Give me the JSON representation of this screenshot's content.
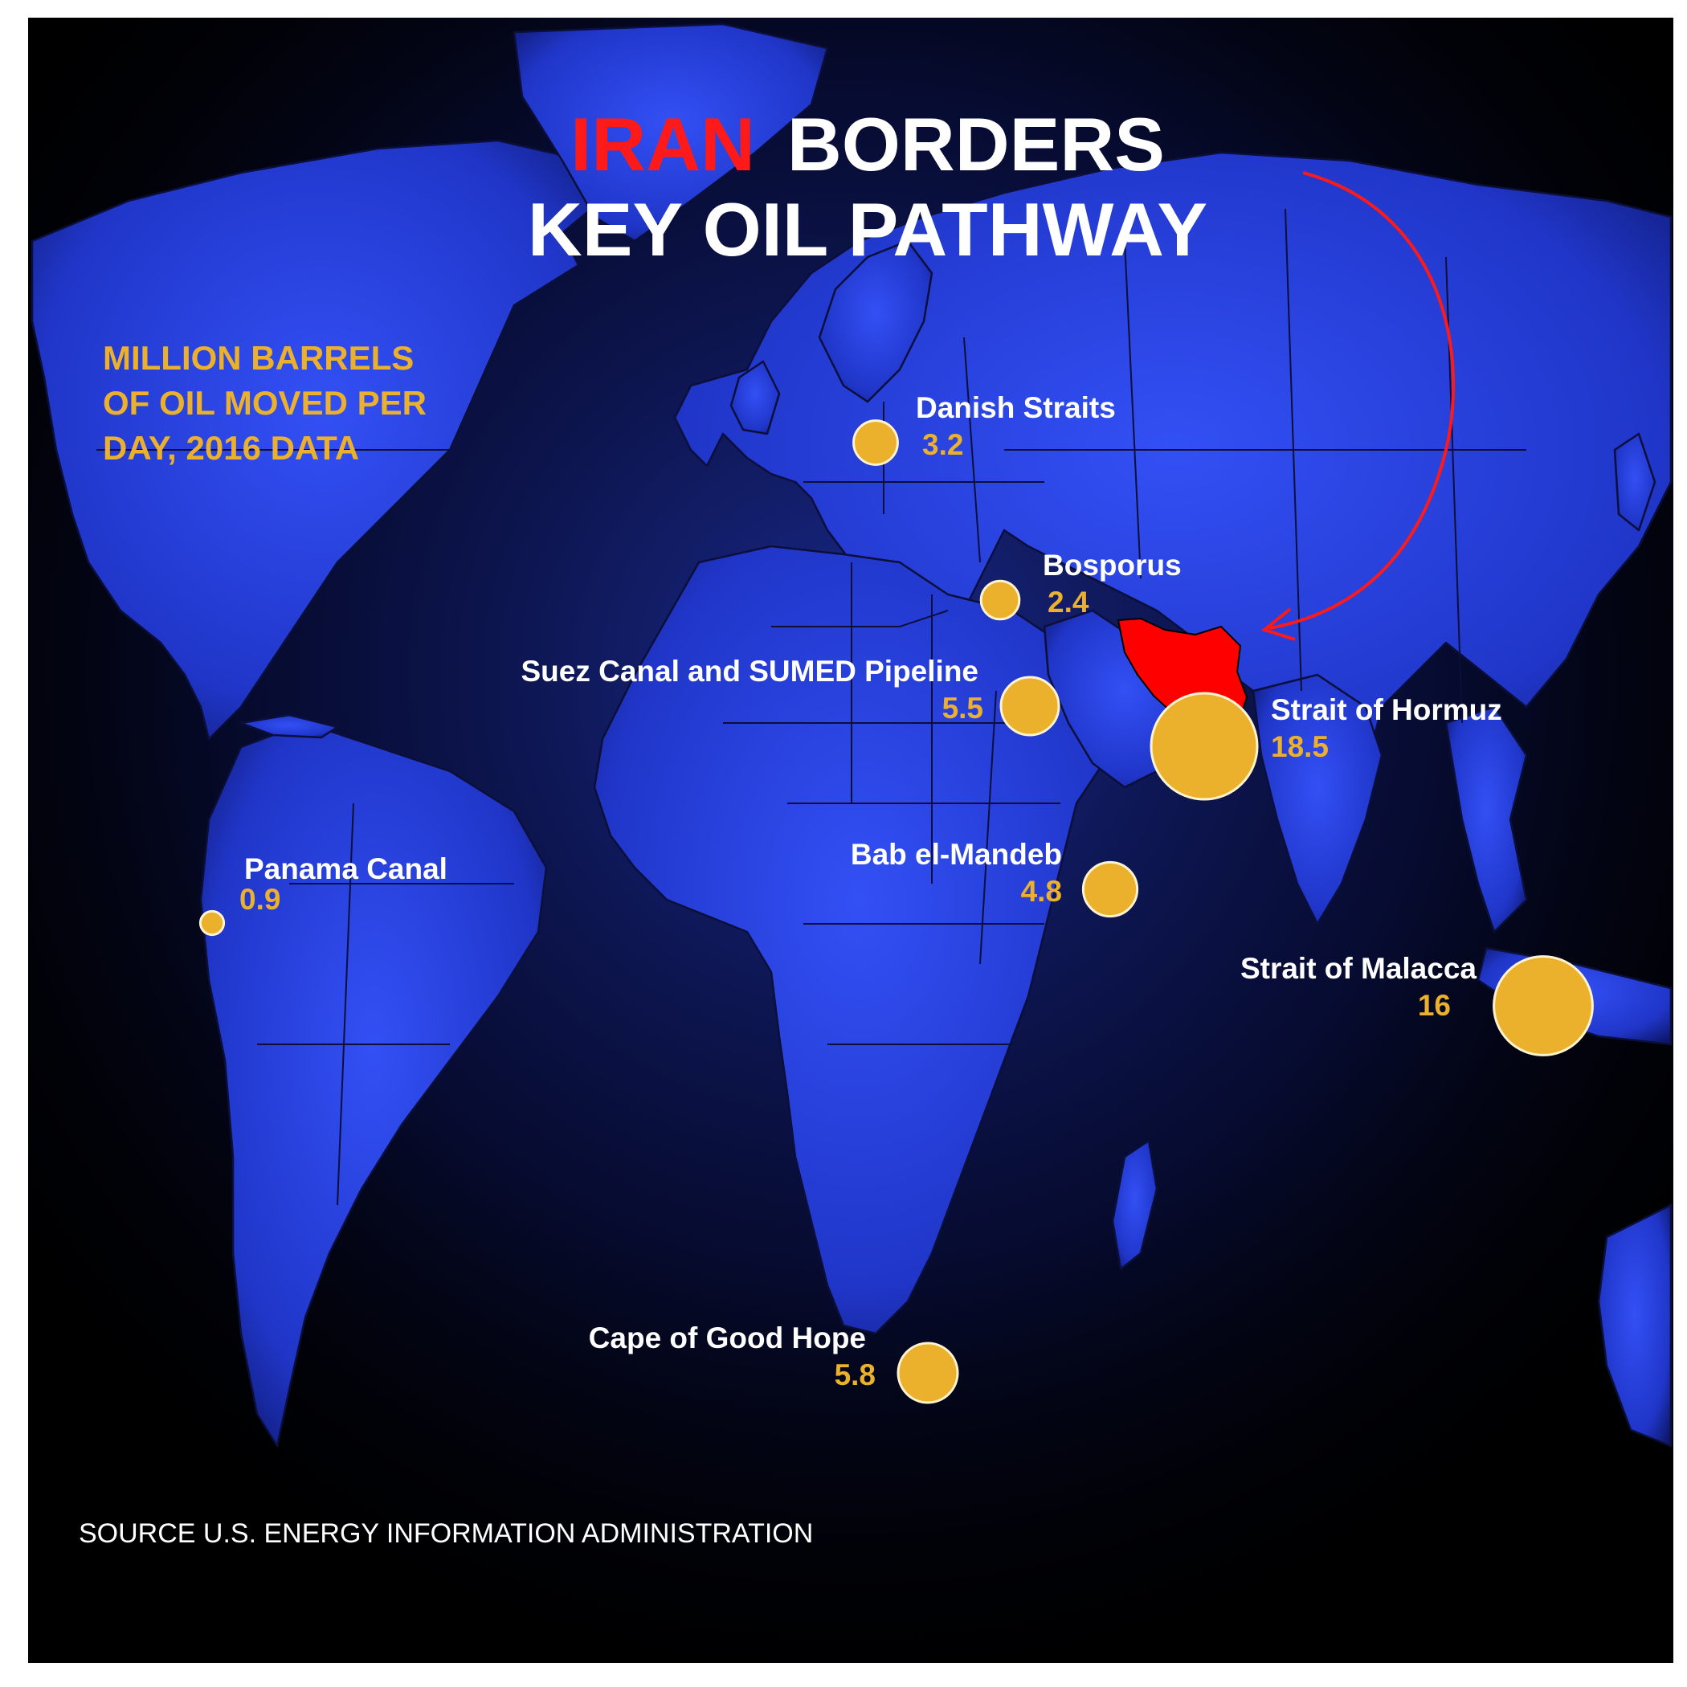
{
  "title": {
    "word_red": "IRAN",
    "word_white": "BORDERS",
    "line2": "KEY OIL PATHWAY"
  },
  "legend": {
    "lines": [
      "MILLION BARRELS",
      "OF OIL MOVED PER",
      "DAY, 2016 DATA"
    ]
  },
  "source": "SOURCE U.S. ENERGY INFORMATION ADMINISTRATION",
  "colors": {
    "ocean": "#000000",
    "land": "#2b46e6",
    "iran": "#ff0000",
    "bubble": "#ecb12c",
    "bubble_stroke": "#fff3d0",
    "value_text": "#ecb12c",
    "title_red": "#ff1a1a",
    "title_white": "#ffffff",
    "arrow": "#ff1a1a"
  },
  "chokepoints": [
    {
      "name": "Danish Straits",
      "value": "3.2",
      "amount": 3.2
    },
    {
      "name": "Bosporus",
      "value": "2.4",
      "amount": 2.4
    },
    {
      "name": "Suez Canal and SUMED Pipeline",
      "value": "5.5",
      "amount": 5.5
    },
    {
      "name": "Strait of Hormuz",
      "value": "18.5",
      "amount": 18.5
    },
    {
      "name": "Panama Canal",
      "value": "0.9",
      "amount": 0.9
    },
    {
      "name": "Bab el-Mandeb",
      "value": "4.8",
      "amount": 4.8
    },
    {
      "name": "Strait of Malacca",
      "value": "16",
      "amount": 16
    },
    {
      "name": "Cape of Good Hope",
      "value": "5.8",
      "amount": 5.8
    }
  ]
}
